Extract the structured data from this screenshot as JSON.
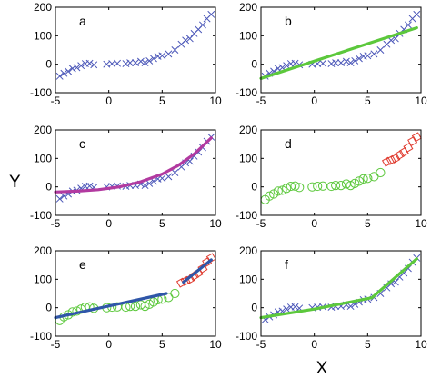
{
  "chart_data": {
    "type": "scatter",
    "xlabel": "X",
    "ylabel": "Y",
    "xlim": [
      -5,
      10
    ],
    "ylim": [
      -100,
      200
    ],
    "x_ticks": [
      "-5",
      "0",
      "5",
      "10"
    ],
    "y_ticks": [
      "-100",
      "0",
      "100",
      "200"
    ],
    "panels": [
      {
        "label": "a",
        "series": [
          {
            "marker": "x",
            "color": "#4a56b8",
            "points": [
              [
                -4.6,
                -42
              ],
              [
                -4.2,
                -32
              ],
              [
                -3.8,
                -25
              ],
              [
                -3.4,
                -15
              ],
              [
                -3.0,
                -12
              ],
              [
                -2.6,
                -5
              ],
              [
                -2.2,
                2
              ],
              [
                -1.8,
                3
              ],
              [
                -1.4,
                -2
              ],
              [
                -0.2,
                0
              ],
              [
                0.3,
                2
              ],
              [
                0.8,
                3
              ],
              [
                1.6,
                2
              ],
              [
                2.0,
                5
              ],
              [
                2.5,
                5
              ],
              [
                3.0,
                10
              ],
              [
                3.4,
                5
              ],
              [
                3.8,
                12
              ],
              [
                4.2,
                20
              ],
              [
                4.6,
                28
              ],
              [
                5.0,
                30
              ],
              [
                5.6,
                36
              ],
              [
                6.2,
                50
              ],
              [
                6.8,
                70
              ],
              [
                7.2,
                84
              ],
              [
                7.6,
                90
              ],
              [
                8.0,
                108
              ],
              [
                8.4,
                122
              ],
              [
                8.8,
                138
              ],
              [
                9.2,
                160
              ],
              [
                9.6,
                175
              ]
            ]
          }
        ]
      },
      {
        "label": "b",
        "series": [
          {
            "marker": "x",
            "color": "#4a56b8",
            "points": [
              [
                -4.6,
                -42
              ],
              [
                -4.2,
                -32
              ],
              [
                -3.8,
                -25
              ],
              [
                -3.4,
                -15
              ],
              [
                -3.0,
                -12
              ],
              [
                -2.6,
                -5
              ],
              [
                -2.2,
                2
              ],
              [
                -1.8,
                3
              ],
              [
                -1.4,
                -2
              ],
              [
                -0.2,
                0
              ],
              [
                0.3,
                2
              ],
              [
                0.8,
                3
              ],
              [
                1.6,
                2
              ],
              [
                2.0,
                5
              ],
              [
                2.5,
                5
              ],
              [
                3.0,
                10
              ],
              [
                3.4,
                5
              ],
              [
                3.8,
                12
              ],
              [
                4.2,
                20
              ],
              [
                4.6,
                28
              ],
              [
                5.0,
                30
              ],
              [
                5.6,
                36
              ],
              [
                6.2,
                50
              ],
              [
                6.8,
                70
              ],
              [
                7.2,
                84
              ],
              [
                7.6,
                90
              ],
              [
                8.0,
                108
              ],
              [
                8.4,
                122
              ],
              [
                8.8,
                138
              ],
              [
                9.2,
                160
              ],
              [
                9.6,
                175
              ]
            ]
          },
          {
            "kind": "line",
            "color": "#5cc83c",
            "points": [
              [
                -5,
                -50
              ],
              [
                9.6,
                128
              ]
            ]
          }
        ]
      },
      {
        "label": "c",
        "series": [
          {
            "marker": "x",
            "color": "#4a56b8",
            "points": [
              [
                -4.6,
                -42
              ],
              [
                -4.2,
                -32
              ],
              [
                -3.8,
                -25
              ],
              [
                -3.4,
                -15
              ],
              [
                -3.0,
                -12
              ],
              [
                -2.6,
                -5
              ],
              [
                -2.2,
                2
              ],
              [
                -1.8,
                3
              ],
              [
                -1.4,
                -2
              ],
              [
                -0.2,
                0
              ],
              [
                0.3,
                2
              ],
              [
                0.8,
                3
              ],
              [
                1.6,
                2
              ],
              [
                2.0,
                5
              ],
              [
                2.5,
                5
              ],
              [
                3.0,
                10
              ],
              [
                3.4,
                5
              ],
              [
                3.8,
                12
              ],
              [
                4.2,
                20
              ],
              [
                4.6,
                28
              ],
              [
                5.0,
                30
              ],
              [
                5.6,
                36
              ],
              [
                6.2,
                50
              ],
              [
                6.8,
                70
              ],
              [
                7.2,
                84
              ],
              [
                7.6,
                90
              ],
              [
                8.0,
                108
              ],
              [
                8.4,
                122
              ],
              [
                8.8,
                138
              ],
              [
                9.2,
                160
              ],
              [
                9.6,
                175
              ]
            ]
          },
          {
            "kind": "line",
            "color": "#b23aa0",
            "points": [
              [
                -5,
                -18
              ],
              [
                -3,
                -15
              ],
              [
                -1,
                -10
              ],
              [
                1,
                0
              ],
              [
                3,
                18
              ],
              [
                5,
                45
              ],
              [
                6.5,
                75
              ],
              [
                8,
                115
              ],
              [
                9.6,
                172
              ]
            ]
          }
        ]
      },
      {
        "label": "d",
        "series": [
          {
            "marker": "o",
            "color": "#5cc83c",
            "points": [
              [
                -4.6,
                -45
              ],
              [
                -4.2,
                -32
              ],
              [
                -3.8,
                -25
              ],
              [
                -3.4,
                -15
              ],
              [
                -3.0,
                -12
              ],
              [
                -2.6,
                -5
              ],
              [
                -2.2,
                2
              ],
              [
                -1.8,
                3
              ],
              [
                -1.4,
                -2
              ],
              [
                -0.2,
                0
              ],
              [
                0.3,
                2
              ],
              [
                0.8,
                3
              ],
              [
                1.6,
                2
              ],
              [
                2.0,
                5
              ],
              [
                2.5,
                5
              ],
              [
                3.0,
                10
              ],
              [
                3.4,
                5
              ],
              [
                3.8,
                12
              ],
              [
                4.2,
                20
              ],
              [
                4.6,
                28
              ],
              [
                5.0,
                30
              ],
              [
                5.6,
                36
              ],
              [
                6.2,
                50
              ]
            ]
          },
          {
            "marker": "d",
            "color": "#e03c30",
            "points": [
              [
                6.8,
                88
              ],
              [
                7.2,
                94
              ],
              [
                7.6,
                100
              ],
              [
                8.0,
                112
              ],
              [
                8.4,
                122
              ],
              [
                8.8,
                138
              ],
              [
                9.2,
                160
              ],
              [
                9.6,
                175
              ]
            ]
          }
        ]
      },
      {
        "label": "e",
        "series": [
          {
            "marker": "o",
            "color": "#5cc83c",
            "points": [
              [
                -4.6,
                -45
              ],
              [
                -4.2,
                -32
              ],
              [
                -3.8,
                -25
              ],
              [
                -3.4,
                -15
              ],
              [
                -3.0,
                -12
              ],
              [
                -2.6,
                -5
              ],
              [
                -2.2,
                2
              ],
              [
                -1.8,
                3
              ],
              [
                -1.4,
                -2
              ],
              [
                -0.2,
                0
              ],
              [
                0.3,
                2
              ],
              [
                0.8,
                3
              ],
              [
                1.6,
                2
              ],
              [
                2.0,
                5
              ],
              [
                2.5,
                5
              ],
              [
                3.0,
                10
              ],
              [
                3.4,
                5
              ],
              [
                3.8,
                12
              ],
              [
                4.2,
                20
              ],
              [
                4.6,
                28
              ],
              [
                5.0,
                30
              ],
              [
                5.6,
                36
              ],
              [
                6.2,
                50
              ]
            ]
          },
          {
            "marker": "d",
            "color": "#e03c30",
            "points": [
              [
                6.8,
                88
              ],
              [
                7.2,
                94
              ],
              [
                7.6,
                100
              ],
              [
                8.0,
                112
              ],
              [
                8.4,
                122
              ],
              [
                8.8,
                138
              ],
              [
                9.2,
                160
              ],
              [
                9.6,
                175
              ]
            ]
          },
          {
            "kind": "line",
            "color": "#2f56a8",
            "points": [
              [
                -5,
                -35
              ],
              [
                5.4,
                50
              ]
            ]
          },
          {
            "kind": "line",
            "color": "#2f56a8",
            "points": [
              [
                7.0,
                90
              ],
              [
                9.6,
                168
              ]
            ]
          }
        ]
      },
      {
        "label": "f",
        "series": [
          {
            "marker": "x",
            "color": "#4a56b8",
            "points": [
              [
                -4.6,
                -42
              ],
              [
                -4.2,
                -32
              ],
              [
                -3.8,
                -25
              ],
              [
                -3.4,
                -15
              ],
              [
                -3.0,
                -12
              ],
              [
                -2.6,
                -5
              ],
              [
                -2.2,
                2
              ],
              [
                -1.8,
                3
              ],
              [
                -1.4,
                -2
              ],
              [
                -0.2,
                0
              ],
              [
                0.3,
                2
              ],
              [
                0.8,
                3
              ],
              [
                1.6,
                2
              ],
              [
                2.0,
                5
              ],
              [
                2.5,
                5
              ],
              [
                3.0,
                10
              ],
              [
                3.4,
                5
              ],
              [
                3.8,
                12
              ],
              [
                4.2,
                20
              ],
              [
                4.6,
                28
              ],
              [
                5.0,
                30
              ],
              [
                5.6,
                36
              ],
              [
                6.2,
                50
              ],
              [
                6.8,
                70
              ],
              [
                7.2,
                84
              ],
              [
                7.6,
                90
              ],
              [
                8.0,
                108
              ],
              [
                8.4,
                122
              ],
              [
                8.8,
                138
              ],
              [
                9.2,
                160
              ],
              [
                9.6,
                175
              ]
            ]
          },
          {
            "kind": "line",
            "color": "#5cc83c",
            "points": [
              [
                -5,
                -35
              ],
              [
                0,
                -5
              ],
              [
                5.4,
                35
              ],
              [
                9.6,
                172
              ]
            ]
          }
        ]
      }
    ]
  }
}
